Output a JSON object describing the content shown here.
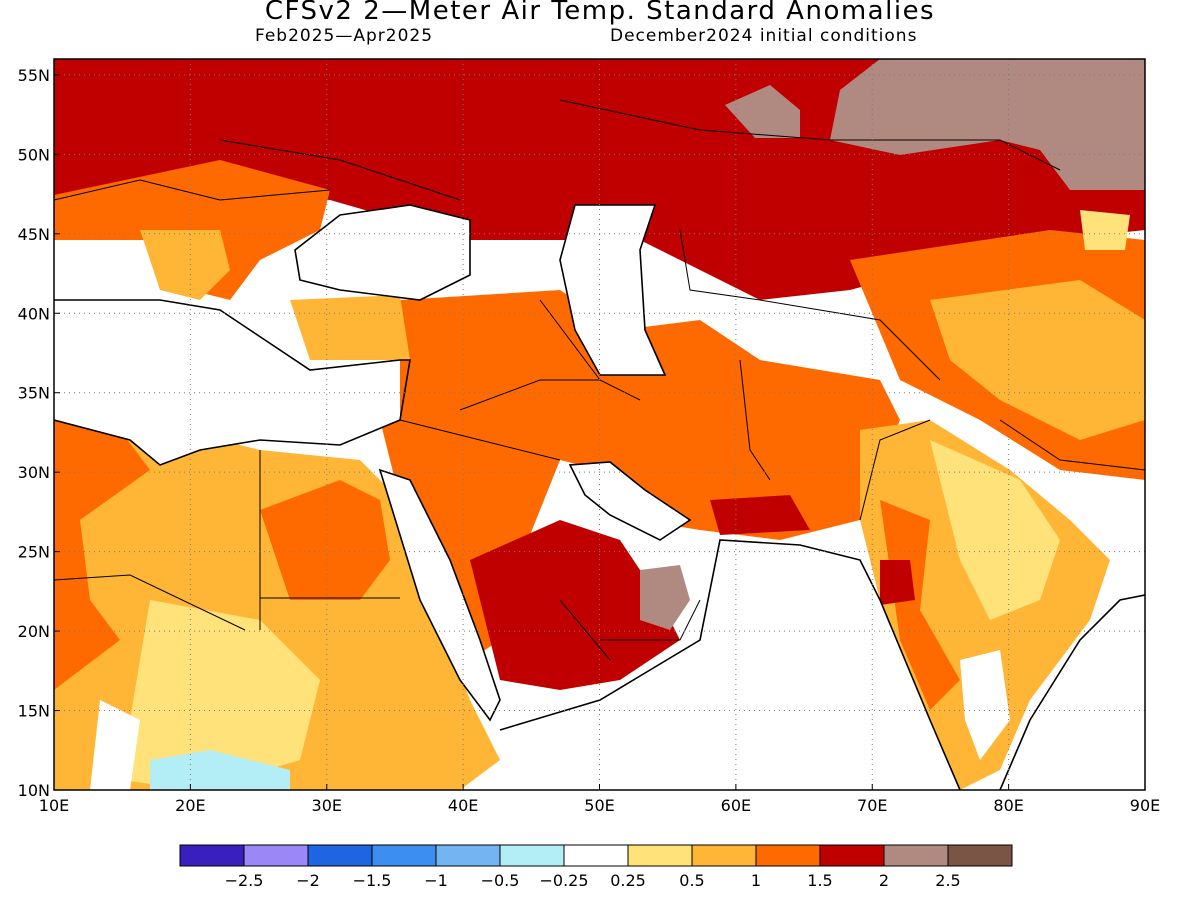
{
  "title": "CFSv2 2—Meter Air Temp. Standard Anomalies",
  "subtitle_left": "Feb2025—Apr2025",
  "subtitle_right": "December2024 initial conditions",
  "map": {
    "lon_range": [
      10,
      90
    ],
    "lat_range": [
      10,
      56
    ],
    "lon_ticks": [
      "10E",
      "20E",
      "30E",
      "40E",
      "50E",
      "60E",
      "70E",
      "80E",
      "90E"
    ],
    "lat_ticks": [
      "10N",
      "15N",
      "20N",
      "25N",
      "30N",
      "35N",
      "40N",
      "45N",
      "50N",
      "55N"
    ],
    "grid": "dotted"
  },
  "legend": {
    "colors": [
      "#3a1fbf",
      "#9b87f5",
      "#1f64e0",
      "#3c8ff0",
      "#74b4f3",
      "#b3eef7",
      "#ffffff",
      "#ffe27a",
      "#ffb637",
      "#ff6a00",
      "#c00000",
      "#b08a80",
      "#7a5546"
    ],
    "labels": [
      "−2.5",
      "−2",
      "−1.5",
      "−1",
      "−0.5",
      "−0.25",
      "0.25",
      "0.5",
      "1",
      "1.5",
      "2",
      "2.5"
    ]
  }
}
